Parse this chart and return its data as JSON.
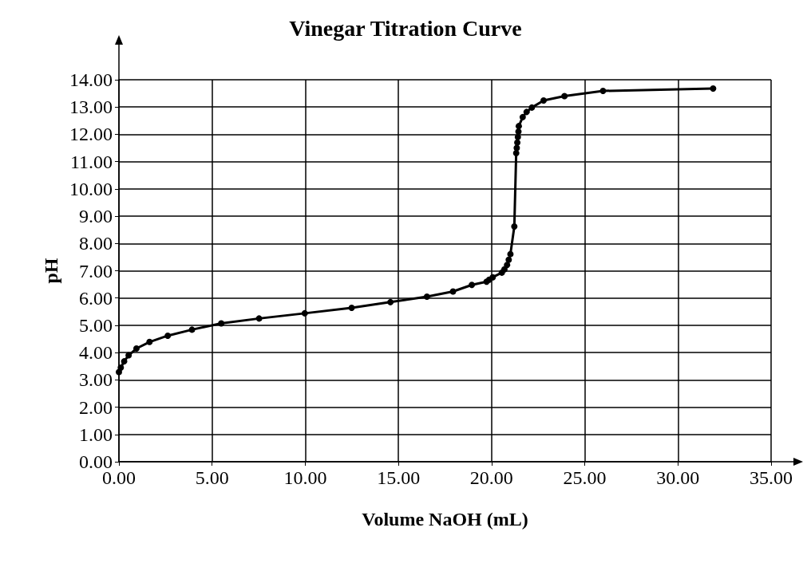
{
  "chart_data": {
    "type": "line",
    "title": "Vinegar Titration Curve",
    "xlabel": "Volume NaOH (mL)",
    "ylabel": "pH",
    "x": [
      0,
      0.1,
      0.28,
      0.52,
      0.94,
      1.64,
      2.62,
      3.92,
      5.49,
      7.52,
      9.97,
      12.49,
      14.57,
      16.53,
      17.93,
      18.94,
      19.73,
      19.87,
      20.06,
      20.55,
      20.69,
      20.83,
      20.92,
      21.01,
      21.22,
      21.32,
      21.35,
      21.38,
      21.41,
      21.44,
      21.46,
      21.67,
      21.88,
      22.16,
      22.79,
      23.91,
      25.98,
      31.89
    ],
    "series": [
      {
        "color": "#000000",
        "values": [
          3.29,
          3.45,
          3.68,
          3.9,
          4.15,
          4.39,
          4.62,
          4.84,
          5.07,
          5.25,
          5.44,
          5.64,
          5.85,
          6.05,
          6.24,
          6.48,
          6.6,
          6.67,
          6.76,
          6.93,
          7.05,
          7.21,
          7.4,
          7.61,
          8.62,
          11.31,
          11.5,
          11.7,
          11.9,
          12.1,
          12.3,
          12.63,
          12.82,
          12.98,
          13.24,
          13.4,
          13.59,
          13.68
        ]
      }
    ],
    "xlim": [
      0,
      35
    ],
    "xticks": [
      {
        "value": 0,
        "label": "0.00"
      },
      {
        "value": 5,
        "label": "5.00"
      },
      {
        "value": 10,
        "label": "10.00"
      },
      {
        "value": 15,
        "label": "15.00"
      },
      {
        "value": 20,
        "label": "20.00"
      },
      {
        "value": 25,
        "label": "25.00"
      },
      {
        "value": 30,
        "label": "30.00"
      },
      {
        "value": 35,
        "label": "35.00"
      }
    ],
    "ylim": [
      0,
      14
    ],
    "yticks": [
      {
        "value": 0,
        "label": "0.00"
      },
      {
        "value": 1,
        "label": "1.00"
      },
      {
        "value": 2,
        "label": "2.00"
      },
      {
        "value": 3,
        "label": "3.00"
      },
      {
        "value": 4,
        "label": "4.00"
      },
      {
        "value": 5,
        "label": "5.00"
      },
      {
        "value": 6,
        "label": "6.00"
      },
      {
        "value": 7,
        "label": "7.00"
      },
      {
        "value": 8,
        "label": "8.00"
      },
      {
        "value": 9,
        "label": "9.00"
      },
      {
        "value": 10,
        "label": "10.00"
      },
      {
        "value": 11,
        "label": "11.00"
      },
      {
        "value": 12,
        "label": "12.00"
      },
      {
        "value": 13,
        "label": "13.00"
      },
      {
        "value": 14,
        "label": "14.00"
      }
    ],
    "grid": true,
    "marker": "circle",
    "line_style": "solid"
  }
}
